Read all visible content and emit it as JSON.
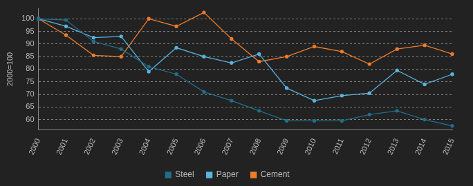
{
  "chart_data": {
    "type": "line",
    "y_label": "2000=100",
    "categories": [
      "2000",
      "2001",
      "2002",
      "2003",
      "2004",
      "2005",
      "2006",
      "2007",
      "2008",
      "2009",
      "2010",
      "2011",
      "2012",
      "2013",
      "2014",
      "2015"
    ],
    "series": [
      {
        "name": "Steel",
        "color": "#1f6f8b",
        "values": [
          100,
          99.5,
          91,
          88,
          81,
          78,
          71,
          67.5,
          63.5,
          59.5,
          59.5,
          59.5,
          62,
          63.5,
          60,
          57.5
        ]
      },
      {
        "name": "Paper",
        "color": "#5ab4e0",
        "values": [
          100,
          97,
          92.5,
          93,
          79,
          88.5,
          85,
          82.5,
          86,
          72.5,
          67.5,
          69.5,
          70.5,
          79.5,
          74,
          78
        ]
      },
      {
        "name": "Cement",
        "color": "#f07c28",
        "values": [
          100,
          93.5,
          85.5,
          85,
          100,
          97,
          102.5,
          92,
          83,
          85,
          89,
          87,
          82,
          88,
          89.5,
          86
        ]
      }
    ],
    "ylim": [
      56,
      104
    ],
    "yticks": [
      60,
      65,
      70,
      75,
      80,
      85,
      90,
      95,
      100
    ],
    "grid": true,
    "legend": "bottom",
    "marker": "circle",
    "line_style": "solid"
  }
}
